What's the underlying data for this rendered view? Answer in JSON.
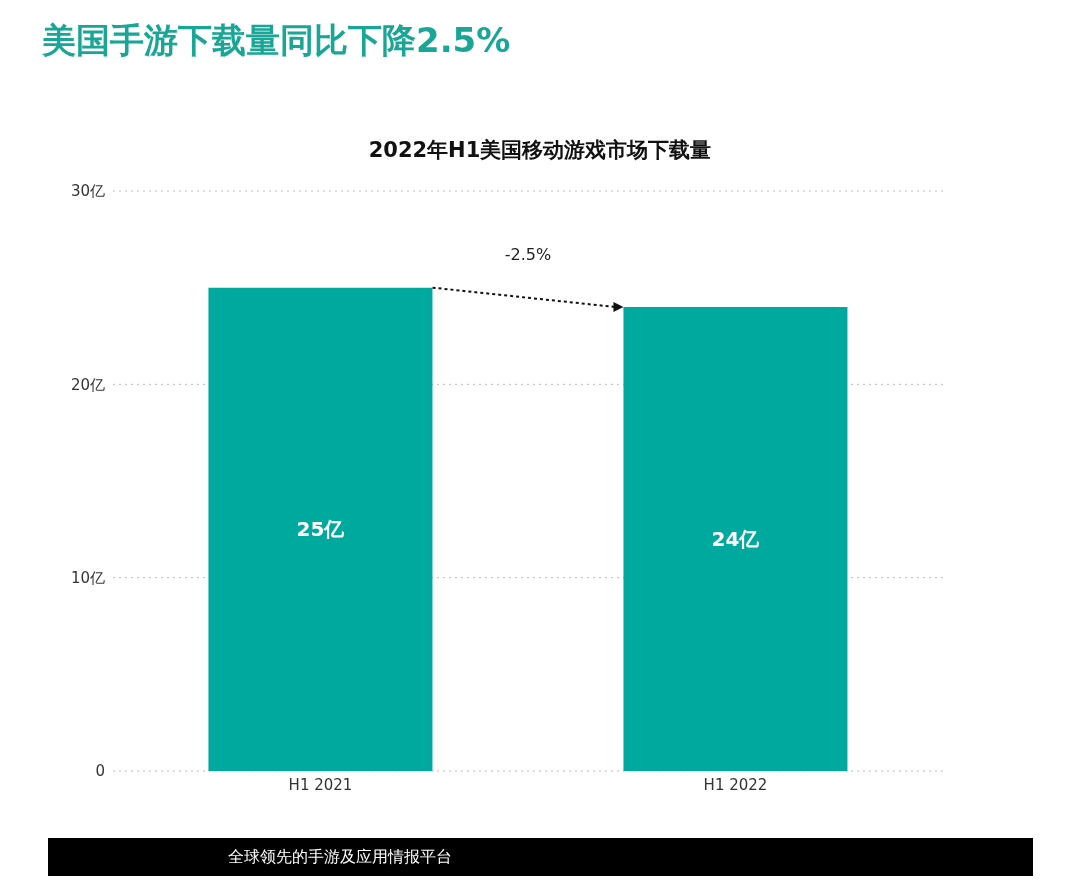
{
  "chart_data": {
    "type": "bar",
    "title": "美国手游下载量同比下降2.5%",
    "subtitle": "2022年H1美国移动游戏市场下载量",
    "categories": [
      "H1 2021",
      "H1 2022"
    ],
    "values": [
      25,
      24
    ],
    "value_labels": [
      "25亿",
      "24亿"
    ],
    "color": "#00a99d",
    "ylim": [
      0,
      30
    ],
    "yticks": [
      0,
      {
        "value": 10,
        "label": "10亿"
      },
      {
        "value": 20,
        "label": "20亿"
      },
      {
        "value": 30,
        "label": "30亿"
      }
    ],
    "grid": "y",
    "annotations": [
      "-2.5%",
      "全球领先的手游及应用情报平台"
    ]
  }
}
